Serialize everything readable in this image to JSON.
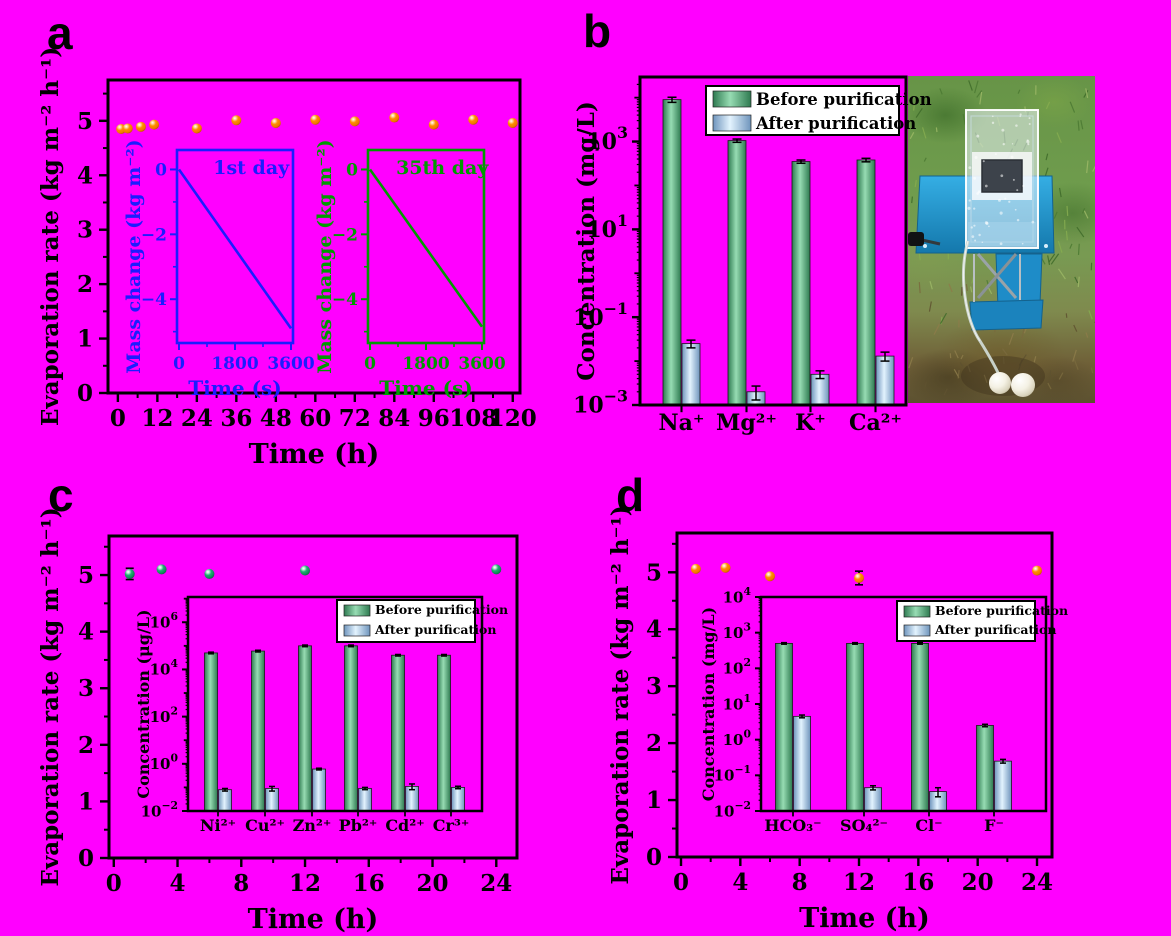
{
  "figure": {
    "background_color": "#FF00FF",
    "panels": [
      {
        "id": "a",
        "label": "a"
      },
      {
        "id": "b",
        "label": "b"
      },
      {
        "id": "c",
        "label": "c"
      },
      {
        "id": "d",
        "label": "d"
      }
    ],
    "photo_alt": "outdoor-solar-evaporator-device-on-grass"
  },
  "legend_labels": {
    "before": "Before purification",
    "after": "After purification"
  },
  "colors": {
    "background": "#FF00FF",
    "axis": "#000000",
    "orange_point": "#FF8C00",
    "green_point": "#1FAE72",
    "inset_day1": "#1C1CFF",
    "inset_day35": "#009900",
    "bar_before_edge": "#2E7A50",
    "bar_before_mid": "#97DCB3",
    "bar_after_edge": "#6E94BC",
    "bar_after_mid": "#E3F3FE",
    "legend_bg": "#FFFFFF"
  },
  "chart_data": [
    {
      "id": "a_main",
      "type": "scatter",
      "xlabel": "Time (h)",
      "ylabel": "Evaporation rate (kg m⁻² h⁻¹)",
      "xlim": [
        0,
        120
      ],
      "ylim": [
        0,
        5.75
      ],
      "xticks": [
        0,
        12,
        24,
        36,
        48,
        60,
        72,
        84,
        96,
        108,
        120
      ],
      "yticks": [
        0,
        1,
        2,
        3,
        4,
        5
      ],
      "x": [
        1,
        3,
        7,
        11,
        24,
        36,
        48,
        60,
        72,
        84,
        96,
        108,
        120
      ],
      "y": [
        4.85,
        4.86,
        4.89,
        4.93,
        4.86,
        5.01,
        4.96,
        5.02,
        4.99,
        5.06,
        4.93,
        5.02,
        4.96
      ],
      "point_color": "#FF8C00"
    },
    {
      "id": "a_inset_day1",
      "type": "line",
      "annotation": "1st day",
      "xlabel": "Time (s)",
      "ylabel": "Mass change (kg m⁻²)",
      "xlim": [
        0,
        3600
      ],
      "ylim": [
        -5.35,
        0.6
      ],
      "xticks": [
        0,
        1800,
        3600
      ],
      "yticks": [
        0,
        -2,
        -4
      ],
      "x": [
        0,
        3600
      ],
      "y": [
        0,
        -4.9
      ],
      "color": "#1C1CFF"
    },
    {
      "id": "a_inset_day35",
      "type": "line",
      "annotation": "35th day",
      "xlabel": "Time (s)",
      "ylabel": "Mass change (kg m⁻²)",
      "xlim": [
        0,
        3600
      ],
      "ylim": [
        -5.35,
        0.6
      ],
      "xticks": [
        0,
        1800,
        3600
      ],
      "yticks": [
        0,
        -2,
        -4
      ],
      "x": [
        0,
        3600
      ],
      "y": [
        0,
        -4.85
      ],
      "color": "#009900"
    },
    {
      "id": "b_bars",
      "type": "bar",
      "yscale": "log",
      "ylabel": "Concentration (mg/L)",
      "ylim": [
        0.001,
        30000
      ],
      "categories": [
        "Na⁺",
        "Mg²⁺",
        "K⁺",
        "Ca²⁺"
      ],
      "series": [
        {
          "name": "Before purification",
          "values": [
            9000,
            1050,
            350,
            380
          ],
          "errors": [
            1200,
            90,
            30,
            35
          ]
        },
        {
          "name": "After purification",
          "values": [
            0.025,
            0.002,
            0.005,
            0.013
          ],
          "errors": [
            0.005,
            0.0007,
            0.001,
            0.003
          ]
        }
      ]
    },
    {
      "id": "c_main",
      "type": "scatter",
      "xlabel": "Time (h)",
      "ylabel": "Evaporation rate (kg m⁻² h⁻¹)",
      "xlim": [
        0,
        24
      ],
      "ylim": [
        0,
        5.69
      ],
      "xticks": [
        0,
        4,
        8,
        12,
        16,
        20,
        24
      ],
      "yticks": [
        0,
        1,
        2,
        3,
        4,
        5
      ],
      "x": [
        1,
        3,
        6,
        12,
        24
      ],
      "y": [
        5.02,
        5.1,
        5.02,
        5.08,
        5.1
      ],
      "yerr": [
        0.1,
        0.03,
        0.03,
        0.03,
        0.03
      ],
      "point_color": "#1FAE72"
    },
    {
      "id": "c_inset_bars",
      "type": "bar",
      "yscale": "log",
      "ylabel": "Concentration (μg/L)",
      "ylim": [
        0.01,
        10000000
      ],
      "categories": [
        "Ni²⁺",
        "Cu²⁺",
        "Zn²⁺",
        "Pb²⁺",
        "Cd²⁺",
        "Cr³⁺"
      ],
      "series": [
        {
          "name": "Before purification",
          "values": [
            50000,
            60000,
            100000,
            100000,
            40000,
            40000
          ],
          "errors": [
            4000,
            5000,
            8000,
            8000,
            3000,
            3000
          ]
        },
        {
          "name": "After purification",
          "values": [
            0.08,
            0.09,
            0.6,
            0.09,
            0.11,
            0.1
          ],
          "errors": [
            0.01,
            0.02,
            0.05,
            0.01,
            0.03,
            0.012
          ]
        }
      ]
    },
    {
      "id": "d_main",
      "type": "scatter",
      "xlabel": "Time (h)",
      "ylabel": "Evaporation rate (kg m⁻² h⁻¹)",
      "xlim": [
        0,
        24
      ],
      "ylim": [
        0,
        5.69
      ],
      "xticks": [
        0,
        4,
        8,
        12,
        16,
        20,
        24
      ],
      "yticks": [
        0,
        1,
        2,
        3,
        4,
        5
      ],
      "x": [
        1,
        3,
        6,
        12,
        24
      ],
      "y": [
        5.06,
        5.08,
        4.93,
        4.9,
        5.03
      ],
      "yerr": [
        0.03,
        0.03,
        0.04,
        0.12,
        0.04
      ],
      "point_color": "#FF8C00"
    },
    {
      "id": "d_inset_bars",
      "type": "bar",
      "yscale": "log",
      "ylabel": "Concentration (mg/L)",
      "ylim": [
        0.01,
        10000
      ],
      "categories": [
        "HCO₃⁻",
        "SO₄²⁻",
        "Cl⁻",
        "F⁻"
      ],
      "series": [
        {
          "name": "Before purification",
          "values": [
            500,
            500,
            500,
            2.5
          ],
          "errors": [
            25,
            25,
            25,
            0.2
          ]
        },
        {
          "name": "After purification",
          "values": [
            4.5,
            0.045,
            0.035,
            0.25
          ],
          "errors": [
            0.4,
            0.006,
            0.01,
            0.03
          ]
        }
      ]
    }
  ]
}
